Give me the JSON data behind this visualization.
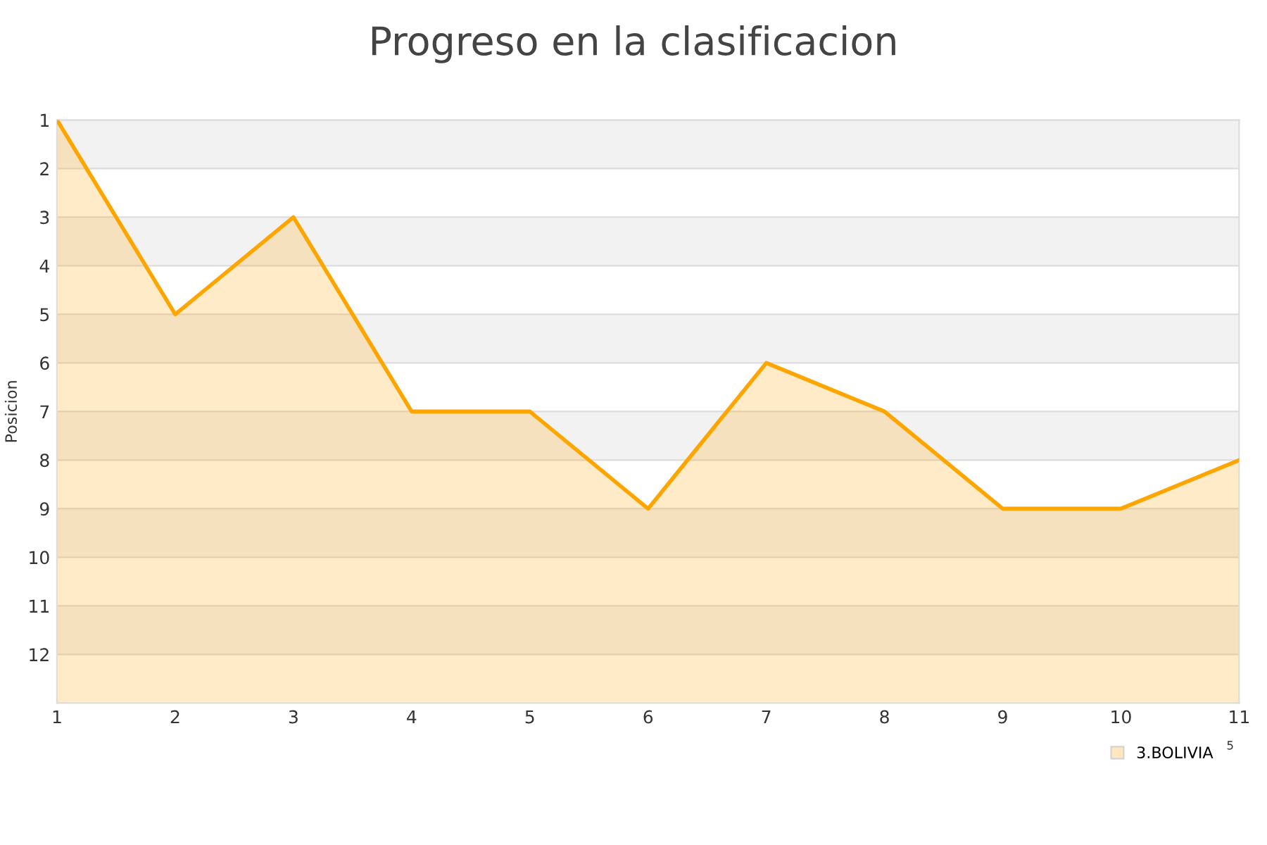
{
  "chart_data": {
    "type": "area",
    "title": "Progreso en la clasificacion",
    "ylabel": "Posicion",
    "x": [
      1,
      2,
      3,
      4,
      5,
      6,
      7,
      8,
      9,
      10,
      11
    ],
    "series": [
      {
        "name": "3.BOLIVIA",
        "color": "#ffa500",
        "values": [
          1,
          5,
          3,
          7,
          7,
          9,
          6,
          7,
          9,
          9,
          8
        ]
      }
    ],
    "xlim": [
      1,
      11
    ],
    "xticks": [
      1,
      2,
      3,
      4,
      5,
      6,
      7,
      8,
      9,
      10,
      11
    ],
    "ylim": [
      13,
      1
    ],
    "yticks": [
      1,
      2,
      3,
      4,
      5,
      6,
      7,
      8,
      9,
      10,
      11,
      12
    ],
    "bands": [
      {
        "axis": "y",
        "from": 1,
        "to": 2,
        "color": "#f2f2f2"
      },
      {
        "axis": "y",
        "from": 3,
        "to": 4,
        "color": "#f2f2f2"
      },
      {
        "axis": "y",
        "from": 5,
        "to": 6,
        "color": "#f2f2f2"
      },
      {
        "axis": "y",
        "from": 7,
        "to": 8,
        "color": "#f2f2f2"
      },
      {
        "axis": "y",
        "from": 9,
        "to": 10,
        "color": "#f2f2f2"
      },
      {
        "axis": "y",
        "from": 11,
        "to": 12,
        "color": "#f2f2f2"
      }
    ],
    "annotations": [
      "5"
    ],
    "grid": "y",
    "legend": "bottom right",
    "marker": "none",
    "line_style": "solid"
  }
}
